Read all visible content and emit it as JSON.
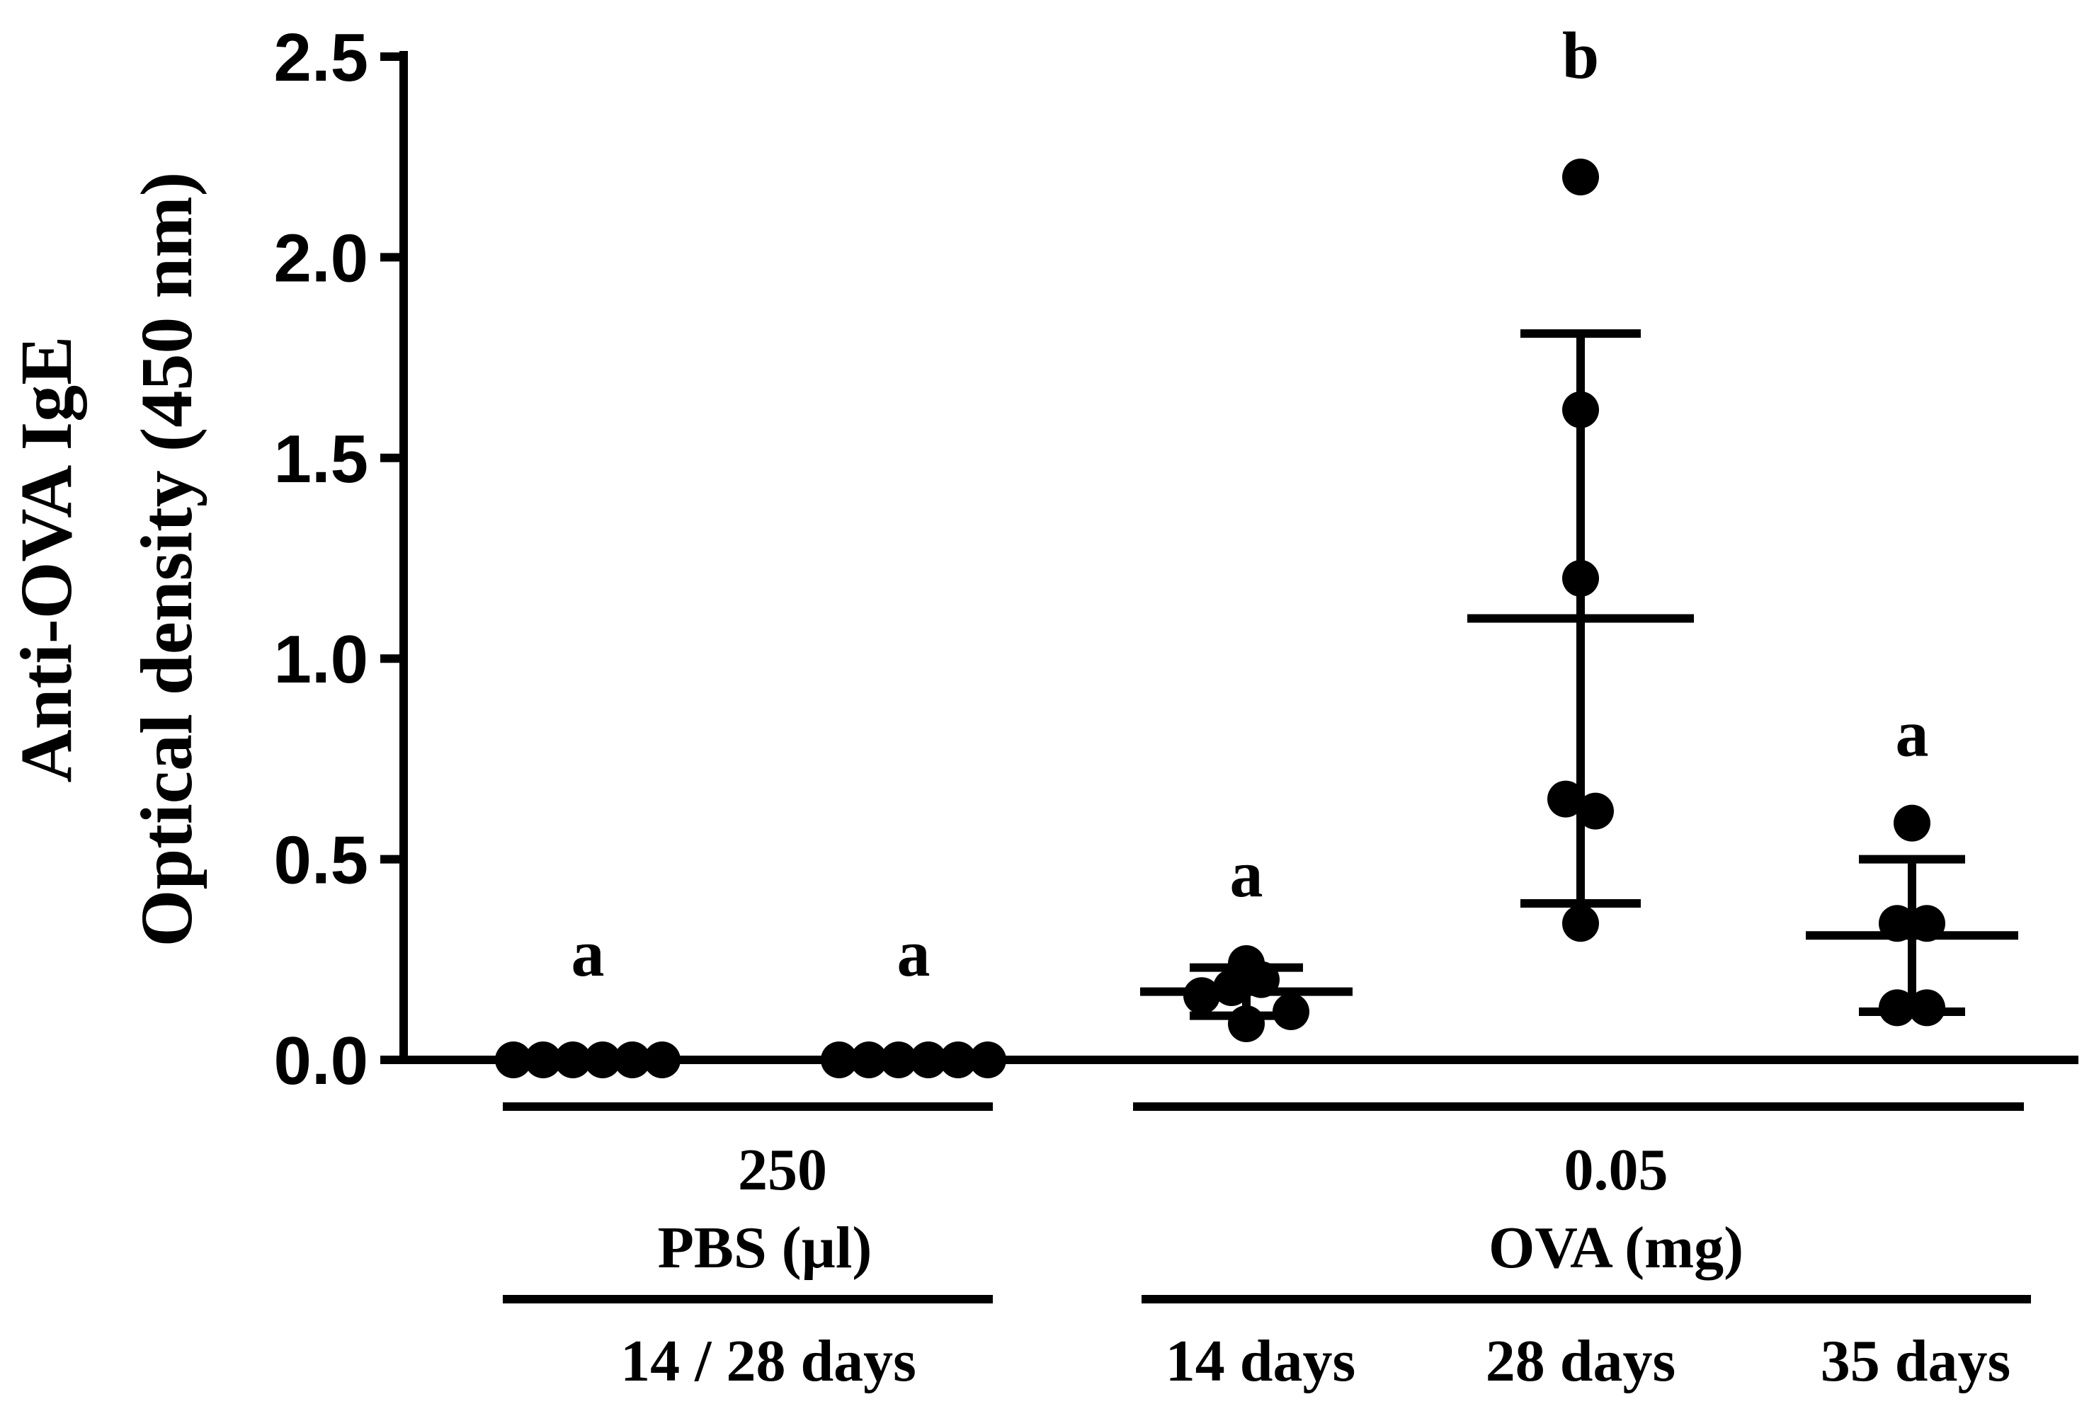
{
  "chart_data": {
    "type": "scatter",
    "ylabel_line1": "Anti-OVA IgE",
    "ylabel_line2": "Optical density (450 nm)",
    "ylim": [
      0,
      2.5
    ],
    "yticks": [
      "0.0",
      "0.5",
      "1.0",
      "1.5",
      "2.0",
      "2.5"
    ],
    "groups": [
      {
        "name": "PBS 14 days",
        "points": [
          0,
          0,
          0,
          0,
          0,
          0
        ],
        "mean": 0,
        "sd": 0,
        "letter": "a"
      },
      {
        "name": "PBS 28 days",
        "points": [
          0,
          0,
          0,
          0,
          0,
          0
        ],
        "mean": 0,
        "sd": 0,
        "letter": "a"
      },
      {
        "name": "OVA 14 days",
        "points": [
          0.16,
          0.18,
          0.2,
          0.09,
          0.12,
          0.24
        ],
        "mean": 0.17,
        "sd": 0.06,
        "letter": "a"
      },
      {
        "name": "OVA 28 days",
        "points": [
          2.2,
          1.62,
          1.2,
          0.65,
          0.62,
          0.34
        ],
        "mean": 1.1,
        "sd": 0.71,
        "letter": "b"
      },
      {
        "name": "OVA 35 days",
        "points": [
          0.59,
          0.34,
          0.34,
          0.13,
          0.13
        ],
        "mean": 0.31,
        "sd": 0.19,
        "letter": "a"
      }
    ],
    "x_annotations": {
      "pbs_dose": "250",
      "pbs_label": "PBS (µl)",
      "pbs_time": "14 / 28 days",
      "ova_dose": "0.05",
      "ova_label": "OVA (mg)",
      "ova_time_14": "14 days",
      "ova_time_28": "28 days",
      "ova_time_35": "35 days"
    }
  }
}
